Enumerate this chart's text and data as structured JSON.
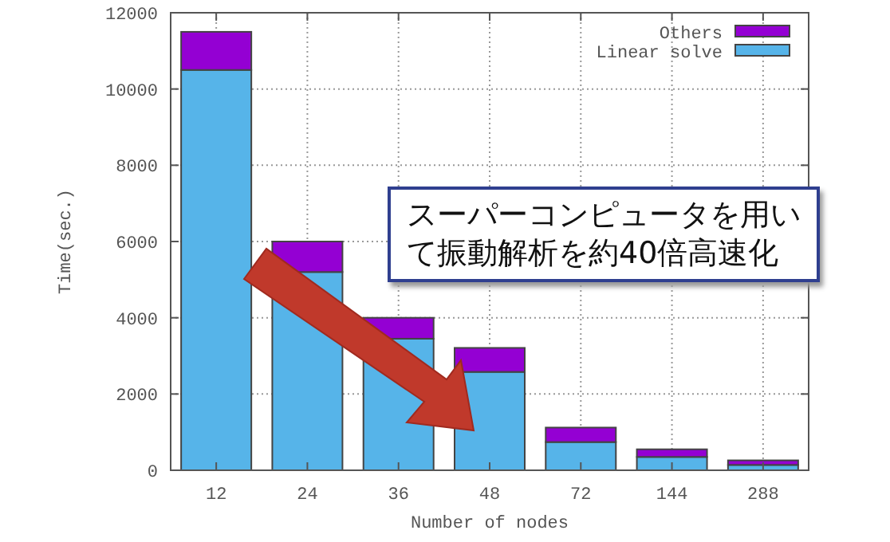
{
  "chart_data": {
    "type": "bar",
    "stacked": true,
    "xlabel": "Number of nodes",
    "ylabel": "Time(sec.)",
    "categories": [
      "12",
      "24",
      "36",
      "48",
      "72",
      "144",
      "288"
    ],
    "series": [
      {
        "name": "Linear solve",
        "color": "#56b4e9",
        "values": [
          10500,
          5200,
          3450,
          2580,
          740,
          350,
          140
        ]
      },
      {
        "name": "Others",
        "color": "#9400d3",
        "values": [
          1000,
          800,
          550,
          630,
          380,
          200,
          120
        ]
      }
    ],
    "ylim": [
      0,
      12000
    ],
    "yticks": [
      0,
      2000,
      4000,
      6000,
      8000,
      10000,
      12000
    ],
    "grid": true,
    "legend": "top right",
    "annotations": [
      "スーパーコンピュータを用いて振動解析を約40倍高速化"
    ]
  }
}
